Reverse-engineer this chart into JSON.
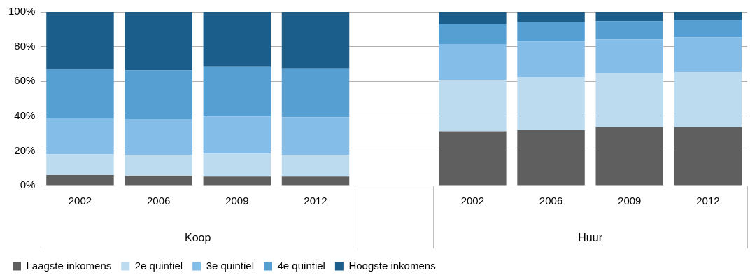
{
  "chart_data": {
    "type": "bar",
    "stacked": true,
    "categories": [
      "2002",
      "2006",
      "2009",
      "2012",
      null,
      "2002",
      "2006",
      "2009",
      "2012"
    ],
    "series": [
      {
        "name": "Laagste inkomens",
        "color": "#5f5f5f",
        "values": [
          6,
          5.6,
          5.1,
          5.1,
          null,
          31.3,
          32,
          33.6,
          33.6
        ]
      },
      {
        "name": "2e quintiel",
        "color": "#bddbef",
        "values": [
          12,
          11.9,
          13.3,
          12.4,
          null,
          29.5,
          30.3,
          31.1,
          31.5
        ]
      },
      {
        "name": "3e quintiel",
        "color": "#83bde8",
        "values": [
          20.7,
          20.8,
          21.3,
          21.9,
          null,
          20.7,
          20.6,
          19.5,
          20.2
        ]
      },
      {
        "name": "4e quintiel",
        "color": "#569fd3",
        "values": [
          28.3,
          28,
          28.5,
          28,
          null,
          11.6,
          11.4,
          10.4,
          10.2
        ]
      },
      {
        "name": "Hoogste inkomens",
        "color": "#1b5e8b",
        "values": [
          33,
          33.7,
          31.8,
          32.6,
          null,
          6.9,
          5.7,
          5.4,
          4.5
        ]
      }
    ],
    "ylim": [
      0,
      100
    ],
    "yticks": [
      {
        "value": 0,
        "label": "0%"
      },
      {
        "value": 20,
        "label": "20%"
      },
      {
        "value": 40,
        "label": "40%"
      },
      {
        "value": 60,
        "label": "60%"
      },
      {
        "value": 80,
        "label": "80%"
      },
      {
        "value": 100,
        "label": "100%"
      }
    ],
    "grid": "y",
    "legend": "bottom left",
    "annotations": [
      "Koop",
      "Huur"
    ]
  }
}
